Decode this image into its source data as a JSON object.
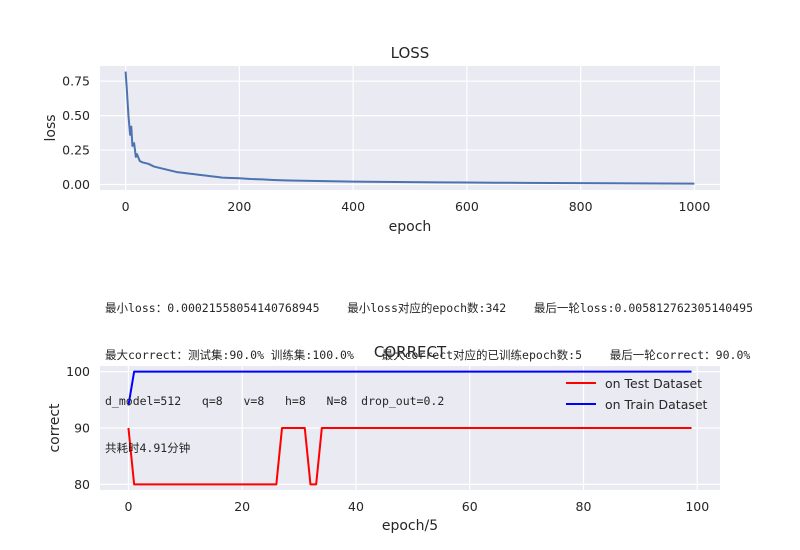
{
  "chart_data": [
    {
      "type": "line",
      "title": "LOSS",
      "xlabel": "epoch",
      "ylabel": "loss",
      "xlim": [
        -45,
        1045
      ],
      "ylim": [
        -0.04,
        0.86
      ],
      "xticks": [
        0,
        200,
        400,
        600,
        800,
        1000
      ],
      "xtick_labels": [
        "0",
        "200",
        "400",
        "600",
        "800",
        "1000"
      ],
      "yticks": [
        0.0,
        0.25,
        0.5,
        0.75
      ],
      "ytick_labels": [
        "0.00",
        "0.25",
        "0.50",
        "0.75"
      ],
      "grid": true,
      "color": "#4c72b0",
      "series": [
        {
          "x": [
            0,
            2,
            5,
            8,
            10,
            12,
            15,
            18,
            20,
            25,
            30,
            40,
            50,
            60,
            70,
            80,
            90,
            100,
            110,
            120,
            130,
            140,
            150,
            160,
            170,
            180,
            200,
            220,
            240,
            260,
            280,
            300,
            350,
            400,
            450,
            500,
            550,
            600,
            650,
            700,
            750,
            800,
            850,
            900,
            950,
            1000
          ],
          "y": [
            0.82,
            0.7,
            0.5,
            0.36,
            0.42,
            0.28,
            0.3,
            0.2,
            0.22,
            0.17,
            0.16,
            0.15,
            0.13,
            0.12,
            0.11,
            0.1,
            0.09,
            0.085,
            0.08,
            0.075,
            0.07,
            0.065,
            0.06,
            0.055,
            0.05,
            0.048,
            0.045,
            0.04,
            0.037,
            0.033,
            0.03,
            0.028,
            0.024,
            0.021,
            0.019,
            0.017,
            0.015,
            0.014,
            0.013,
            0.012,
            0.011,
            0.01,
            0.009,
            0.008,
            0.007,
            0.006
          ]
        }
      ]
    },
    {
      "type": "line",
      "title": "CORRECT",
      "xlabel": "epoch/5",
      "ylabel": "correct",
      "xlim": [
        -5,
        104
      ],
      "ylim": [
        79,
        101
      ],
      "xticks": [
        0,
        20,
        40,
        60,
        80,
        100
      ],
      "xtick_labels": [
        "0",
        "20",
        "40",
        "60",
        "80",
        "100"
      ],
      "yticks": [
        80,
        90,
        100
      ],
      "ytick_labels": [
        "80",
        "90",
        "100"
      ],
      "grid": true,
      "legend": "top-right",
      "x": [
        0,
        1,
        26,
        27,
        31,
        32,
        33,
        34,
        99
      ],
      "series": [
        {
          "name": "on Test Dataset",
          "color": "#ff0000",
          "values": [
            90,
            80,
            80,
            90,
            90,
            80,
            80,
            90,
            90
          ]
        },
        {
          "name": "on Train Dataset",
          "color": "#0000ff",
          "values": [
            94,
            100,
            100,
            100,
            100,
            100,
            100,
            100,
            100
          ]
        }
      ]
    }
  ],
  "info_lines": [
    "最小loss：0.00021558054140768945    最小loss对应的epoch数:342    最后一轮loss:0.005812762305140495",
    "最大correct：测试集:90.0% 训练集:100.0%    最大correct对应的已训练epoch数:5    最后一轮correct：90.0%",
    "d_model=512   q=8   v=8   h=8   N=8  drop_out=0.2",
    "共耗时4.91分钟"
  ]
}
